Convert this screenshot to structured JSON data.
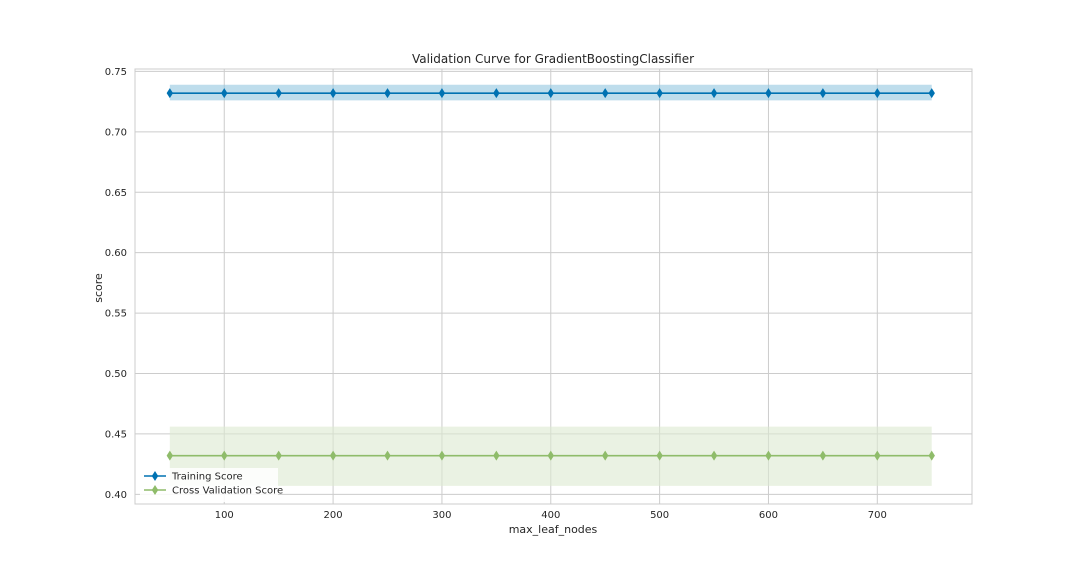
{
  "chart_data": {
    "type": "line",
    "title": "Validation Curve for GradientBoostingClassifier",
    "xlabel": "max_leaf_nodes",
    "ylabel": "score",
    "xlim": [
      18,
      787
    ],
    "ylim": [
      0.392,
      0.752
    ],
    "xticks": [
      100,
      200,
      300,
      400,
      500,
      600,
      700
    ],
    "yticks": [
      0.4,
      0.45,
      0.5,
      0.55,
      0.6,
      0.65,
      0.7,
      0.75
    ],
    "grid": true,
    "legend_position": "lower-left",
    "x": [
      50,
      100,
      150,
      200,
      250,
      300,
      350,
      400,
      450,
      500,
      550,
      600,
      650,
      700,
      750
    ],
    "series": [
      {
        "name": "Training Score",
        "color": "#0072b2",
        "band_color": "#92c6e0",
        "values": [
          0.732,
          0.732,
          0.732,
          0.732,
          0.732,
          0.732,
          0.732,
          0.732,
          0.732,
          0.732,
          0.732,
          0.732,
          0.732,
          0.732,
          0.732
        ],
        "band_lower": [
          0.726,
          0.726,
          0.726,
          0.726,
          0.726,
          0.726,
          0.726,
          0.726,
          0.726,
          0.726,
          0.726,
          0.726,
          0.726,
          0.726,
          0.726
        ],
        "band_upper": [
          0.739,
          0.739,
          0.739,
          0.739,
          0.739,
          0.739,
          0.739,
          0.739,
          0.739,
          0.739,
          0.739,
          0.739,
          0.739,
          0.739,
          0.739
        ]
      },
      {
        "name": "Cross Validation Score",
        "color": "#8fbc6a",
        "band_color": "#dcead0",
        "values": [
          0.432,
          0.432,
          0.432,
          0.432,
          0.432,
          0.432,
          0.432,
          0.432,
          0.432,
          0.432,
          0.432,
          0.432,
          0.432,
          0.432,
          0.432
        ],
        "band_lower": [
          0.407,
          0.407,
          0.407,
          0.407,
          0.407,
          0.407,
          0.407,
          0.407,
          0.407,
          0.407,
          0.407,
          0.407,
          0.407,
          0.407,
          0.407
        ],
        "band_upper": [
          0.456,
          0.456,
          0.456,
          0.456,
          0.456,
          0.456,
          0.456,
          0.456,
          0.456,
          0.456,
          0.456,
          0.456,
          0.456,
          0.456,
          0.456
        ]
      }
    ]
  }
}
